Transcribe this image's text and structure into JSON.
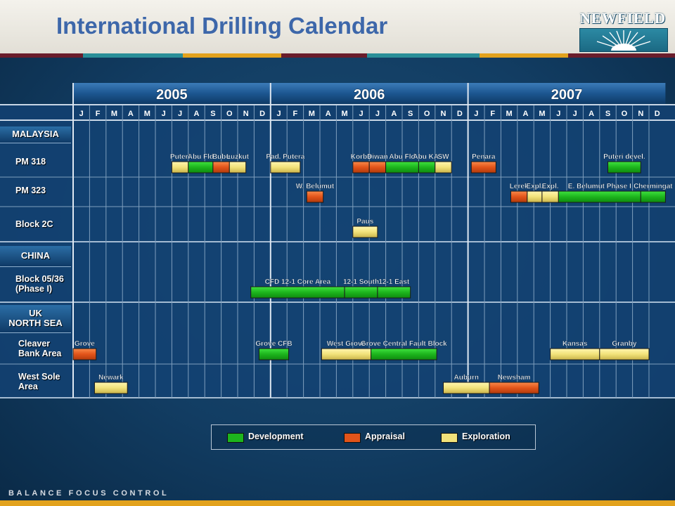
{
  "title": "International Drilling Calendar",
  "logo_text": "NEWFIELD",
  "tagline": "BALANCE FOCUS CONTROL",
  "colors": {
    "development": "#1db51d",
    "appraisal": "#e2541a",
    "exploration": "#f2e27a",
    "grid_line": "#7f9fbd",
    "grid_area": "#134273",
    "header_band": "#123f6e",
    "accent": "#e2a21d"
  },
  "stripe_colors": [
    "#6a1d2b",
    "#2a8f98",
    "#e2a21d",
    "#6a1d2b",
    "#2a8f98",
    "#e2a21d",
    "#6a1d2b"
  ],
  "regions": [
    {
      "label": "MALAYSIA"
    },
    {
      "label": "CHINA"
    },
    {
      "label": "UK\nNORTH SEA"
    }
  ],
  "rows": [
    {
      "label": "PM 318"
    },
    {
      "label": "PM 323"
    },
    {
      "label": "Block 2C"
    },
    {
      "label": "Block 05/36\n(Phase I)"
    },
    {
      "label": "Cleaver\nBank Area"
    },
    {
      "label": "West Sole\nArea"
    }
  ],
  "legend": [
    {
      "label": "Development",
      "type": "development"
    },
    {
      "label": "Appraisal",
      "type": "appraisal"
    },
    {
      "label": "Exploration",
      "type": "exploration"
    }
  ],
  "chart_data": {
    "type": "table",
    "years": [
      "2005",
      "2006",
      "2007"
    ],
    "months": [
      "J",
      "F",
      "M",
      "A",
      "M",
      "J",
      "J",
      "A",
      "S",
      "O",
      "N",
      "D"
    ],
    "activities": [
      {
        "row": 0,
        "label": "Puteri",
        "type": "exploration",
        "start": 6,
        "months": 1
      },
      {
        "row": 0,
        "label": "Abu Fld",
        "type": "development",
        "start": 7,
        "months": 1.5
      },
      {
        "row": 0,
        "label": "Bubu",
        "type": "appraisal",
        "start": 8.5,
        "months": 1
      },
      {
        "row": 0,
        "label": "Luzkut",
        "type": "exploration",
        "start": 9.5,
        "months": 1
      },
      {
        "row": 0,
        "label": "Pad. Putera",
        "type": "exploration",
        "start": 12,
        "months": 1.8
      },
      {
        "row": 0,
        "label": "Korbu",
        "type": "appraisal",
        "start": 17,
        "months": 1
      },
      {
        "row": 0,
        "label": "Diwan",
        "type": "appraisal",
        "start": 18,
        "months": 1
      },
      {
        "row": 0,
        "label": "Abu Fld",
        "type": "development",
        "start": 19,
        "months": 2
      },
      {
        "row": 0,
        "label": "Abu KA.",
        "type": "development",
        "start": 21,
        "months": 1
      },
      {
        "row": 0,
        "label": "SW",
        "type": "exploration",
        "start": 22,
        "months": 1
      },
      {
        "row": 0,
        "label": "Penara",
        "type": "appraisal",
        "start": 24.2,
        "months": 1.5
      },
      {
        "row": 0,
        "label": "Puteri devel.",
        "type": "development",
        "start": 32.5,
        "months": 2
      },
      {
        "row": 1,
        "label": "W. Belumut",
        "type": "appraisal",
        "start": 14.2,
        "months": 1
      },
      {
        "row": 1,
        "label": "Lerek",
        "type": "appraisal",
        "start": 26.6,
        "months": 1
      },
      {
        "row": 1,
        "label": "Expl.",
        "type": "exploration",
        "start": 27.6,
        "months": 0.9
      },
      {
        "row": 1,
        "label": "Expl.",
        "type": "exploration",
        "start": 28.5,
        "months": 1
      },
      {
        "row": 1,
        "label": "E. Belumut Phase I",
        "type": "development",
        "start": 29.5,
        "months": 5
      },
      {
        "row": 1,
        "label": "Chermingat",
        "type": "development",
        "start": 34.5,
        "months": 1.5
      },
      {
        "row": 2,
        "label": "Paus",
        "type": "exploration",
        "start": 17,
        "months": 1.5
      },
      {
        "row": 3,
        "label": "CFD 12-1 Core Area",
        "type": "development",
        "start": 10.8,
        "months": 5.7
      },
      {
        "row": 3,
        "label": "12-1 South",
        "type": "development",
        "start": 16.5,
        "months": 2
      },
      {
        "row": 3,
        "label": "12-1 East",
        "type": "development",
        "start": 18.5,
        "months": 2
      },
      {
        "row": 4,
        "label": "Grove",
        "type": "appraisal",
        "start": 0,
        "months": 1.4
      },
      {
        "row": 4,
        "label": "Grove CFB",
        "type": "development",
        "start": 11.3,
        "months": 1.8
      },
      {
        "row": 4,
        "label": "West Grove",
        "type": "exploration",
        "start": 15.1,
        "months": 3
      },
      {
        "row": 4,
        "label": "Grove Central Fault Block",
        "type": "development",
        "start": 18.1,
        "months": 4
      },
      {
        "row": 4,
        "label": "Kansas",
        "type": "exploration",
        "start": 29,
        "months": 3
      },
      {
        "row": 4,
        "label": "Granby",
        "type": "exploration",
        "start": 32,
        "months": 3
      },
      {
        "row": 5,
        "label": "Newark",
        "type": "exploration",
        "start": 1.3,
        "months": 2
      },
      {
        "row": 5,
        "label": "Auburn",
        "type": "exploration",
        "start": 22.5,
        "months": 2.8
      },
      {
        "row": 5,
        "label": "Newsham",
        "type": "appraisal",
        "start": 25.3,
        "months": 3
      }
    ]
  }
}
